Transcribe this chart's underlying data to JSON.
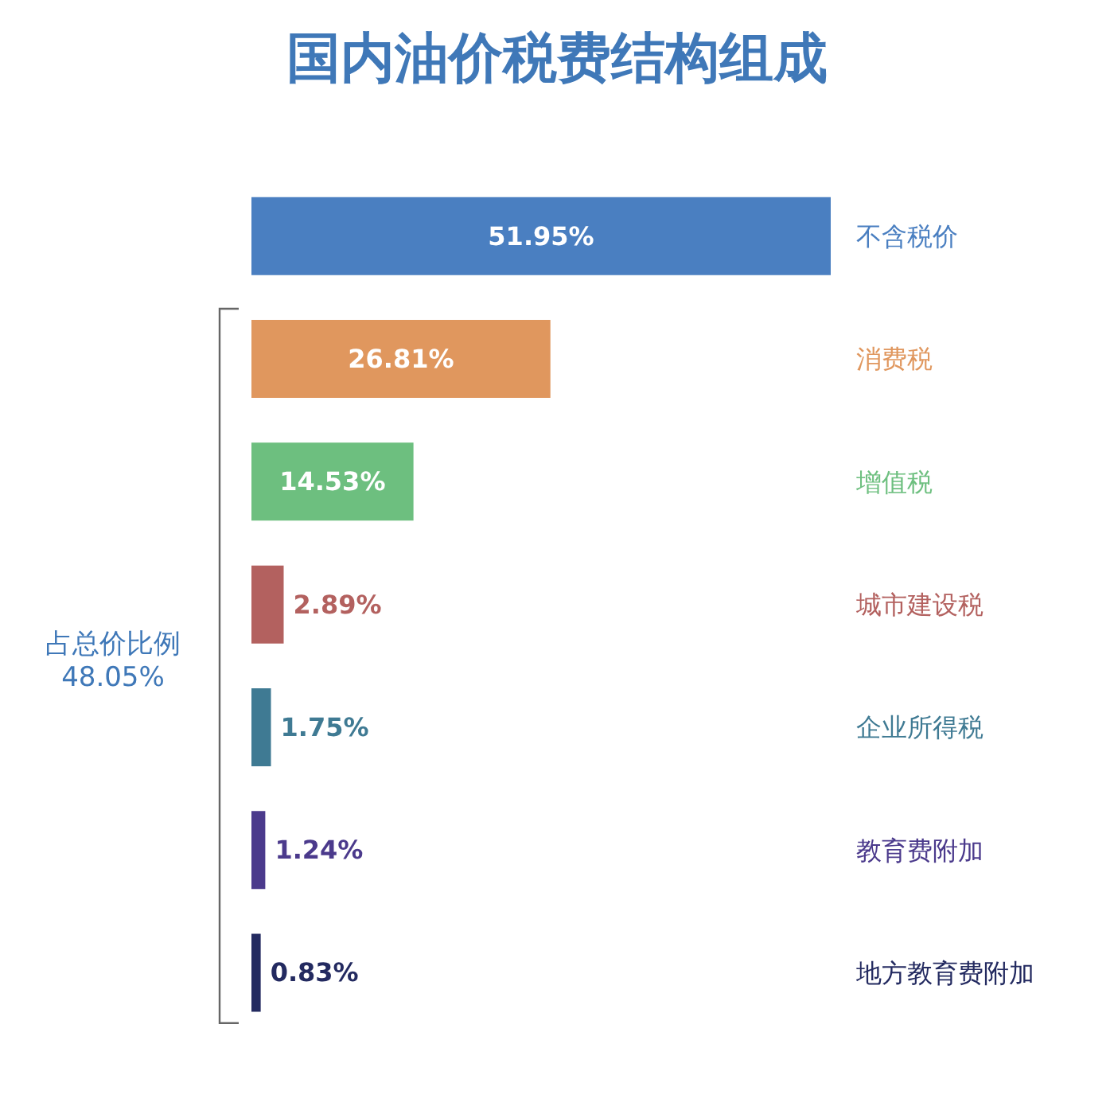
{
  "chart_data": {
    "type": "bar",
    "orientation": "horizontal",
    "title": "国内油价税费结构组成",
    "categories": [
      "不含税价",
      "消费税",
      "增值税",
      "城市建设税",
      "企业所得税",
      "教育费附加",
      "地方教育费附加"
    ],
    "values": [
      51.95,
      26.81,
      14.53,
      2.89,
      1.75,
      1.24,
      0.83
    ],
    "value_labels": [
      "51.95%",
      "26.81%",
      "14.53%",
      "2.89%",
      "1.75%",
      "1.24%",
      "0.83%"
    ],
    "colors": [
      "#4a7fc1",
      "#e0975e",
      "#6dbf7f",
      "#b3615f",
      "#3f7a93",
      "#4b3a8c",
      "#232a60"
    ],
    "annotations": [
      "占总价比例 48.05%"
    ]
  }
}
